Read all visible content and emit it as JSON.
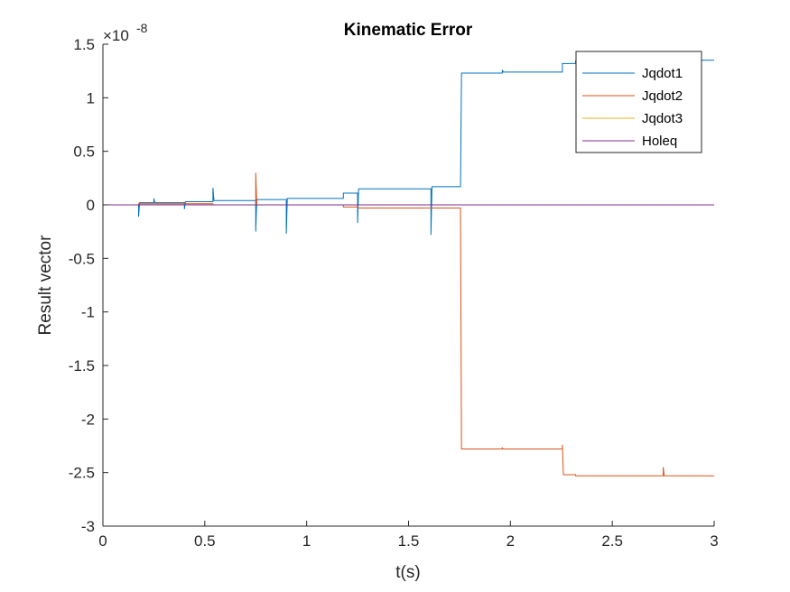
{
  "chart_data": {
    "type": "line",
    "title": "Kinematic Error",
    "xlabel": "t(s)",
    "ylabel": "Result vector",
    "exponent": {
      "prefix": "×10",
      "power": "-8"
    },
    "xlim": [
      0,
      3
    ],
    "ylim": [
      -3,
      1.5
    ],
    "xticks": [
      0,
      0.5,
      1,
      1.5,
      2,
      2.5,
      3
    ],
    "xtick_labels": [
      "0",
      "0.5",
      "1",
      "1.5",
      "2",
      "2.5",
      "3"
    ],
    "yticks": [
      -3,
      -2.5,
      -2,
      -1.5,
      -1,
      -0.5,
      0,
      0.5,
      1,
      1.5
    ],
    "ytick_labels": [
      "-3",
      "-2.5",
      "-2",
      "-1.5",
      "-1",
      "-0.5",
      "0",
      "0.5",
      "1",
      "1.5"
    ],
    "grid": false,
    "legend_position": "top-right",
    "series": [
      {
        "name": "Jqdot1",
        "color": "#0072BD",
        "points": [
          [
            0,
            0
          ],
          [
            0.175,
            0
          ],
          [
            0.175,
            -0.11
          ],
          [
            0.18,
            0.02
          ],
          [
            0.25,
            0.02
          ],
          [
            0.25,
            0.06
          ],
          [
            0.255,
            0.02
          ],
          [
            0.4,
            0.02
          ],
          [
            0.4,
            -0.04
          ],
          [
            0.405,
            0.03
          ],
          [
            0.54,
            0.03
          ],
          [
            0.54,
            0.16
          ],
          [
            0.545,
            0.04
          ],
          [
            0.75,
            0.04
          ],
          [
            0.75,
            -0.25
          ],
          [
            0.755,
            0.05
          ],
          [
            0.9,
            0.05
          ],
          [
            0.9,
            -0.27
          ],
          [
            0.905,
            0.06
          ],
          [
            1.18,
            0.06
          ],
          [
            1.18,
            0.11
          ],
          [
            1.25,
            0.11
          ],
          [
            1.25,
            -0.17
          ],
          [
            1.255,
            0.15
          ],
          [
            1.61,
            0.15
          ],
          [
            1.61,
            -0.28
          ],
          [
            1.615,
            0.17
          ],
          [
            1.755,
            0.17
          ],
          [
            1.76,
            1.23
          ],
          [
            1.96,
            1.23
          ],
          [
            1.96,
            1.26
          ],
          [
            1.965,
            1.24
          ],
          [
            2.255,
            1.24
          ],
          [
            2.255,
            1.32
          ],
          [
            2.26,
            1.32
          ],
          [
            2.32,
            1.32
          ],
          [
            2.32,
            1.34
          ],
          [
            2.325,
            1.33
          ],
          [
            2.76,
            1.33
          ],
          [
            2.76,
            1.35
          ],
          [
            2.765,
            1.35
          ],
          [
            3.0,
            1.35
          ]
        ]
      },
      {
        "name": "Jqdot2",
        "color": "#D95319",
        "points": [
          [
            0,
            0
          ],
          [
            0.175,
            0
          ],
          [
            0.175,
            0.01
          ],
          [
            0.54,
            0.01
          ],
          [
            0.545,
            0.0
          ],
          [
            0.75,
            0.0
          ],
          [
            0.75,
            0.3
          ],
          [
            0.755,
            0.0
          ],
          [
            1.18,
            0.0
          ],
          [
            1.18,
            -0.02
          ],
          [
            1.25,
            -0.02
          ],
          [
            1.255,
            -0.03
          ],
          [
            1.755,
            -0.03
          ],
          [
            1.76,
            -2.28
          ],
          [
            1.96,
            -2.28
          ],
          [
            1.96,
            -2.27
          ],
          [
            1.965,
            -2.28
          ],
          [
            2.255,
            -2.28
          ],
          [
            2.255,
            -2.24
          ],
          [
            2.26,
            -2.52
          ],
          [
            2.32,
            -2.52
          ],
          [
            2.32,
            -2.53
          ],
          [
            2.75,
            -2.53
          ],
          [
            2.75,
            -2.45
          ],
          [
            2.755,
            -2.53
          ],
          [
            3.0,
            -2.53
          ]
        ]
      },
      {
        "name": "Jqdot3",
        "color": "#EDB120",
        "points": [
          [
            0,
            0
          ],
          [
            0.54,
            0
          ],
          [
            0.54,
            0.01
          ],
          [
            0.545,
            0
          ],
          [
            3.0,
            0
          ]
        ]
      },
      {
        "name": "Holeq",
        "color": "#7E2F8E",
        "points": [
          [
            0,
            0
          ],
          [
            3.0,
            0
          ]
        ]
      }
    ]
  }
}
